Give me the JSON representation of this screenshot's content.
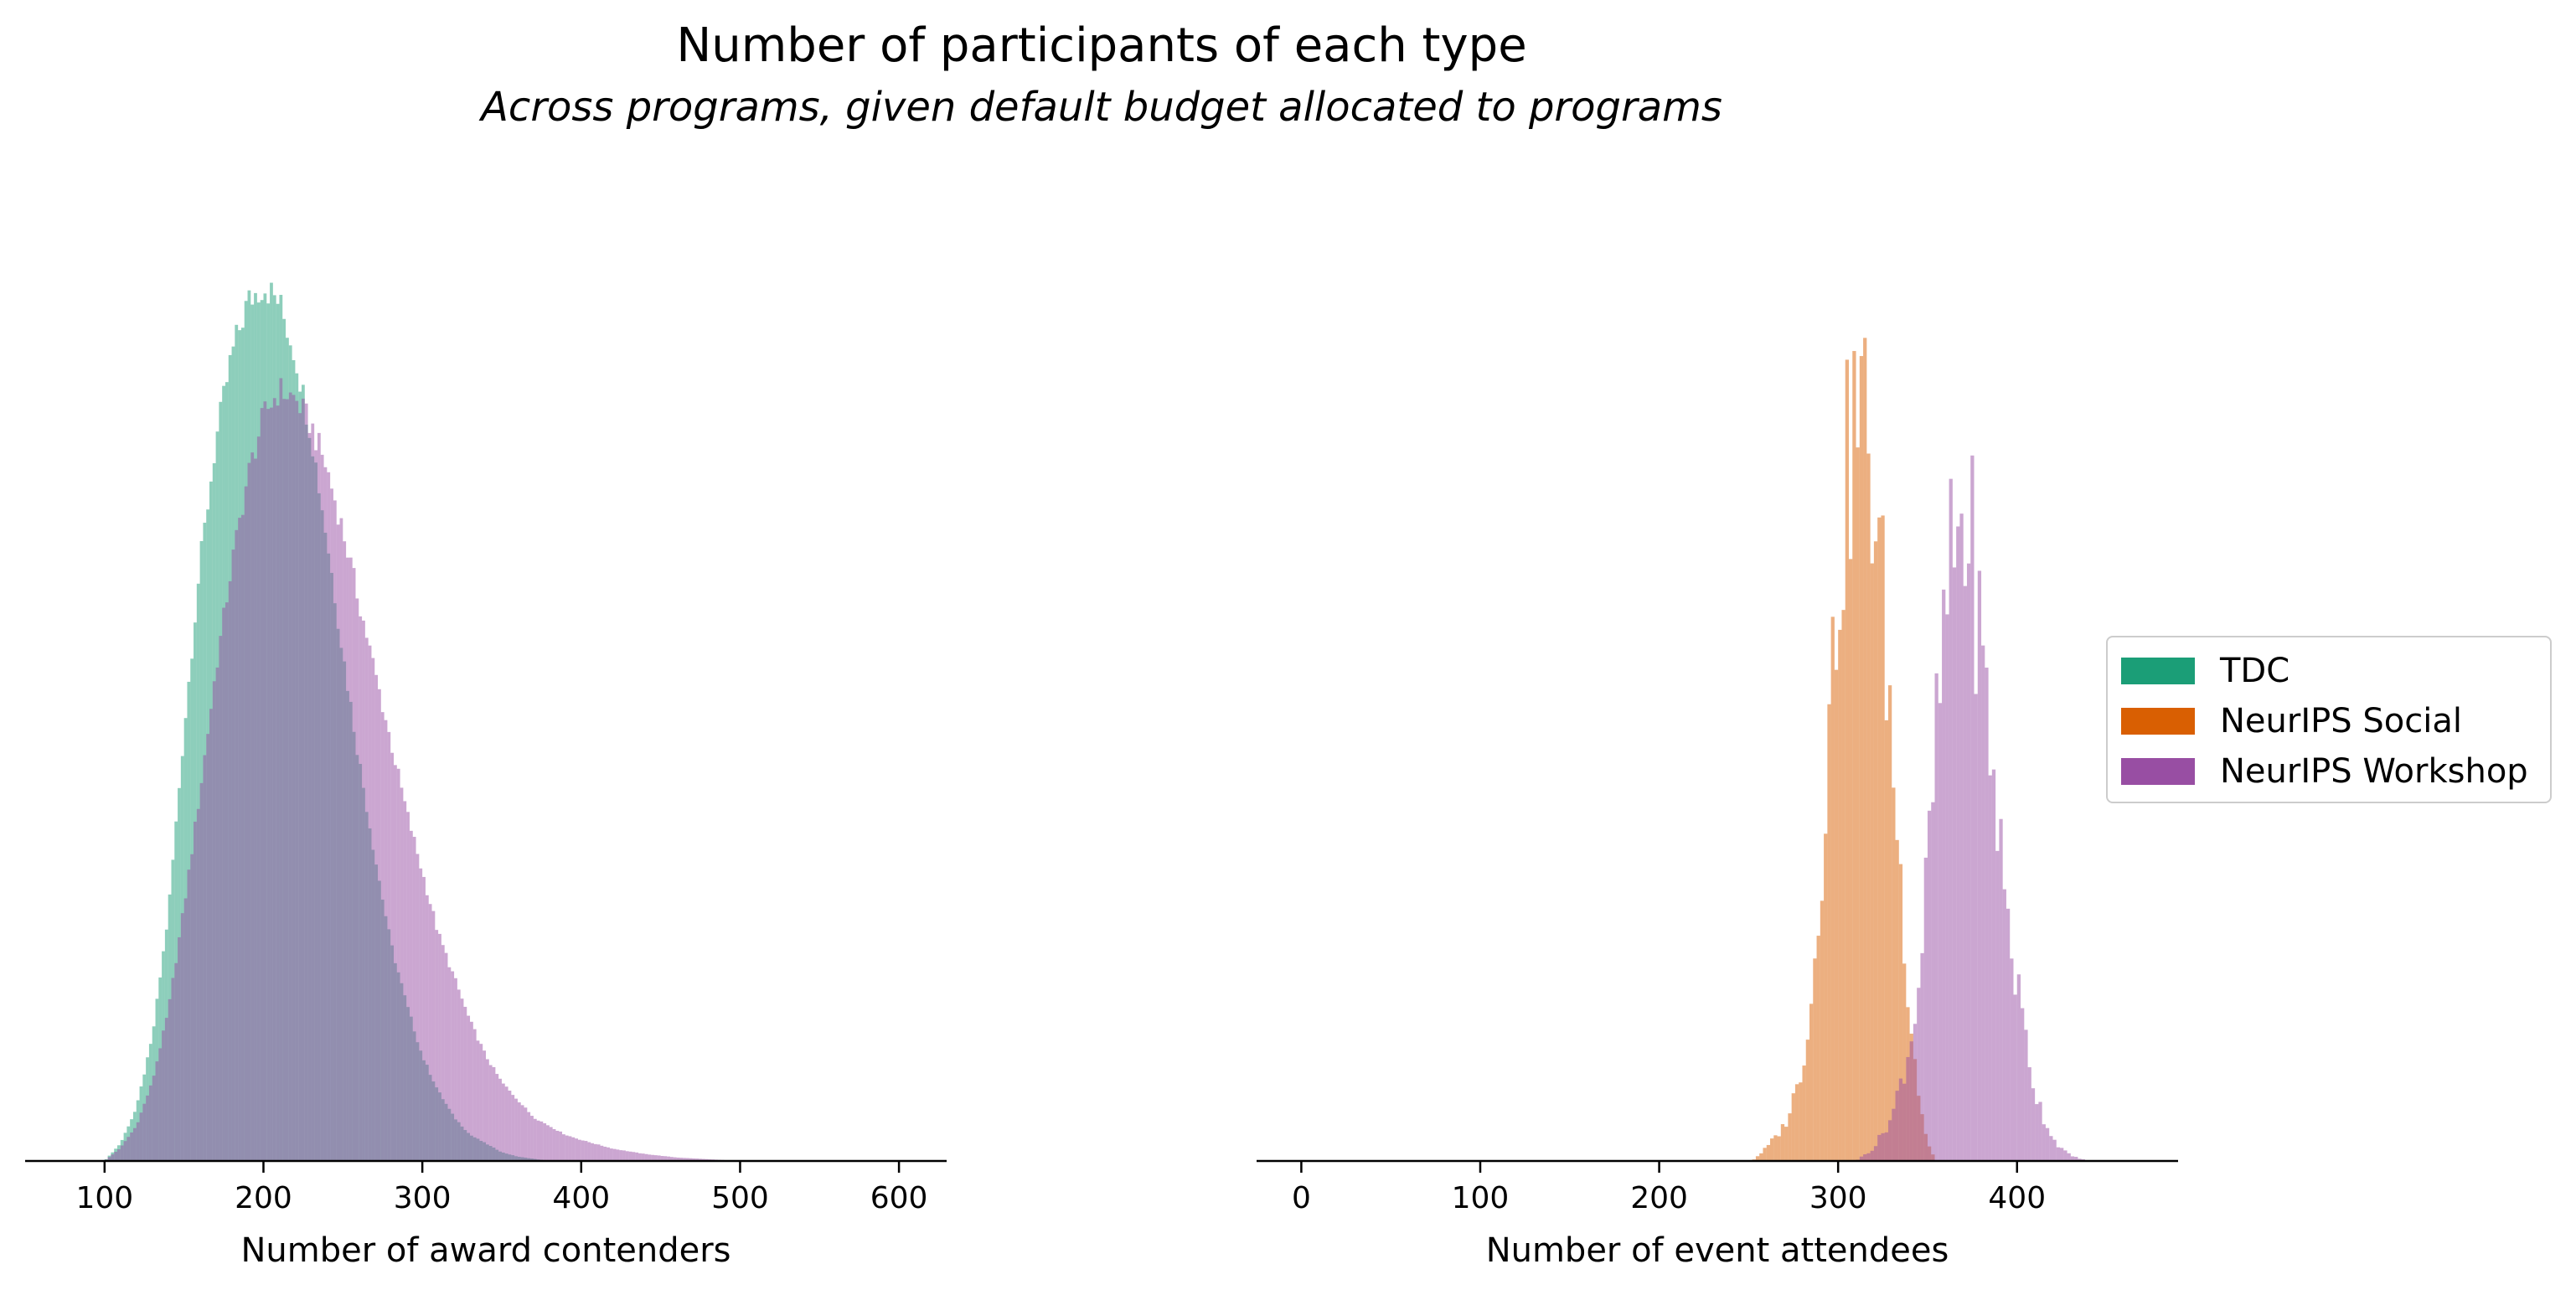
{
  "title": "Number of participants of each type",
  "subtitle": "Across programs, given default budget allocated to programs",
  "colors": {
    "TDC": "#1b9e77",
    "NeurIPS Social": "#d95f02",
    "NeurIPS Workshop": "#984ea3"
  },
  "legend": [
    "TDC",
    "NeurIPS Social",
    "NeurIPS Workshop"
  ],
  "chart_data": [
    {
      "type": "histogram",
      "xlabel": "Number of award contenders",
      "xlim": [
        50,
        630
      ],
      "xticks": [
        100,
        200,
        300,
        400,
        500,
        600
      ],
      "yticks_visible": false,
      "series": [
        {
          "name": "TDC",
          "color": "#1b9e77",
          "points": [
            [
              100,
              0
            ],
            [
              110,
              2
            ],
            [
              120,
              6
            ],
            [
              130,
              14
            ],
            [
              140,
              28
            ],
            [
              150,
              49
            ],
            [
              160,
              68
            ],
            [
              170,
              82
            ],
            [
              180,
              92
            ],
            [
              190,
              98
            ],
            [
              200,
              100
            ],
            [
              210,
              98
            ],
            [
              220,
              92
            ],
            [
              230,
              83
            ],
            [
              240,
              71
            ],
            [
              250,
              58
            ],
            [
              260,
              46
            ],
            [
              270,
              35
            ],
            [
              280,
              25
            ],
            [
              290,
              18
            ],
            [
              300,
              12
            ],
            [
              310,
              8
            ],
            [
              320,
              5
            ],
            [
              330,
              3
            ],
            [
              340,
              2
            ],
            [
              350,
              1
            ],
            [
              360,
              0.5
            ],
            [
              380,
              0
            ]
          ]
        },
        {
          "name": "NeurIPS Workshop",
          "color": "#984ea3",
          "points": [
            [
              100,
              0
            ],
            [
              110,
              1.5
            ],
            [
              120,
              4
            ],
            [
              130,
              9
            ],
            [
              140,
              17
            ],
            [
              150,
              29
            ],
            [
              160,
              42
            ],
            [
              170,
              56
            ],
            [
              180,
              68
            ],
            [
              190,
              78
            ],
            [
              200,
              85
            ],
            [
              210,
              88
            ],
            [
              220,
              87
            ],
            [
              230,
              84
            ],
            [
              240,
              79
            ],
            [
              250,
              72
            ],
            [
              260,
              64
            ],
            [
              270,
              56
            ],
            [
              280,
              48
            ],
            [
              290,
              40
            ],
            [
              300,
              33
            ],
            [
              310,
              26
            ],
            [
              320,
              21
            ],
            [
              330,
              16
            ],
            [
              340,
              12
            ],
            [
              350,
              9
            ],
            [
              360,
              7
            ],
            [
              370,
              5
            ],
            [
              380,
              4
            ],
            [
              390,
              3
            ],
            [
              400,
              2.4
            ],
            [
              420,
              1.4
            ],
            [
              440,
              0.8
            ],
            [
              460,
              0.4
            ],
            [
              480,
              0.2
            ],
            [
              500,
              0
            ]
          ]
        }
      ]
    },
    {
      "type": "histogram",
      "xlabel": "Number of event attendees",
      "xlim": [
        -25,
        490
      ],
      "xticks": [
        0,
        100,
        200,
        300,
        400
      ],
      "yticks_visible": false,
      "series": [
        {
          "name": "NeurIPS Social",
          "color": "#d95f02",
          "points": [
            [
              252,
              0
            ],
            [
              260,
              1.5
            ],
            [
              270,
              4
            ],
            [
              278,
              9
            ],
            [
              285,
              18
            ],
            [
              290,
              32
            ],
            [
              295,
              50
            ],
            [
              300,
              66
            ],
            [
              305,
              78
            ],
            [
              310,
              85
            ],
            [
              315,
              84
            ],
            [
              320,
              76
            ],
            [
              325,
              64
            ],
            [
              330,
              48
            ],
            [
              335,
              32
            ],
            [
              340,
              18
            ],
            [
              345,
              8
            ],
            [
              350,
              2
            ],
            [
              355,
              0
            ]
          ]
        },
        {
          "name": "NeurIPS Workshop",
          "color": "#984ea3",
          "points": [
            [
              310,
              0
            ],
            [
              320,
              1.5
            ],
            [
              330,
              5
            ],
            [
              340,
              13
            ],
            [
              345,
              20
            ],
            [
              350,
              33
            ],
            [
              355,
              48
            ],
            [
              360,
              62
            ],
            [
              365,
              70
            ],
            [
              370,
              73
            ],
            [
              375,
              69
            ],
            [
              380,
              58
            ],
            [
              385,
              48
            ],
            [
              390,
              37
            ],
            [
              395,
              28
            ],
            [
              400,
              20
            ],
            [
              405,
              14
            ],
            [
              410,
              8
            ],
            [
              415,
              5
            ],
            [
              420,
              2.6
            ],
            [
              425,
              1.4
            ],
            [
              430,
              0.6
            ],
            [
              440,
              0
            ]
          ]
        }
      ]
    }
  ]
}
